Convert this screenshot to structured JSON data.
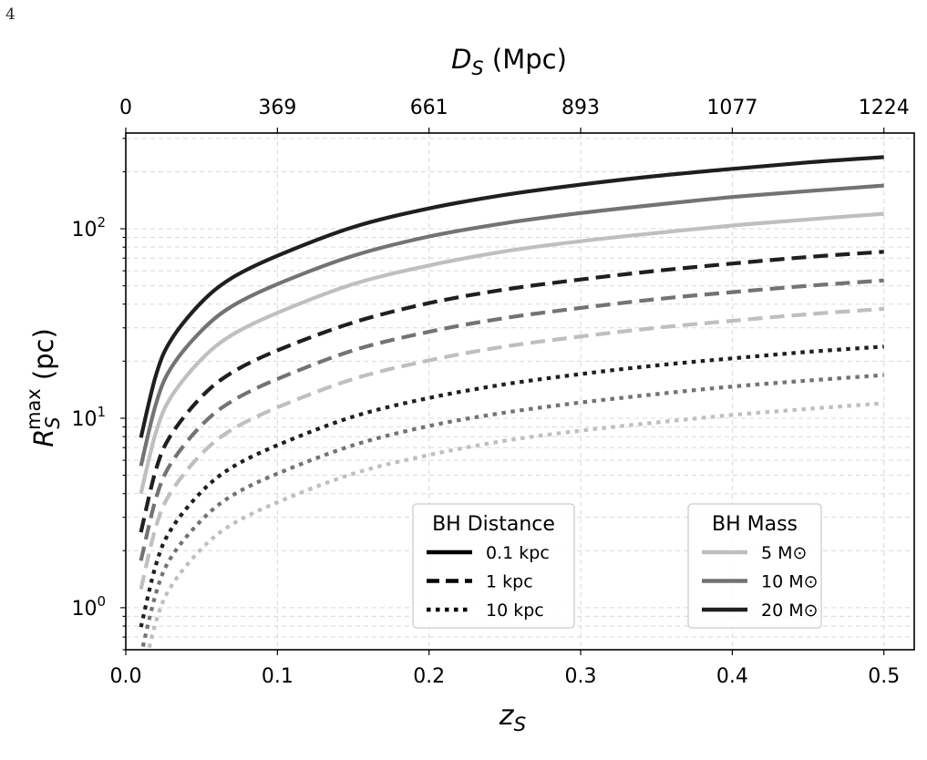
{
  "page": {
    "number": "4"
  },
  "chart_data": {
    "type": "line",
    "title": "",
    "xlabel": "z_S",
    "ylabel": "R_S^max (pc)",
    "top_xlabel": "D_S (Mpc)",
    "xlim": [
      0.0,
      0.52
    ],
    "ylim": [
      0.6,
      320
    ],
    "yscale": "log",
    "grid": true,
    "x_ticks": [
      "0.0",
      "0.1",
      "0.2",
      "0.3",
      "0.4",
      "0.5"
    ],
    "y_ticks": [
      {
        "base": "10",
        "exp": "0",
        "value": 1
      },
      {
        "base": "10",
        "exp": "1",
        "value": 10
      },
      {
        "base": "10",
        "exp": "2",
        "value": 100
      }
    ],
    "top_ticks": [
      {
        "z": 0.0,
        "label": "0"
      },
      {
        "z": 0.1,
        "label": "369"
      },
      {
        "z": 0.2,
        "label": "661"
      },
      {
        "z": 0.3,
        "label": "893"
      },
      {
        "z": 0.4,
        "label": "1077"
      },
      {
        "z": 0.5,
        "label": "1224"
      }
    ],
    "x": [
      0.01,
      0.02,
      0.03,
      0.05,
      0.07,
      0.1,
      0.15,
      0.2,
      0.25,
      0.3,
      0.35,
      0.4,
      0.45,
      0.5
    ],
    "series": [
      {
        "distance": "0.1 kpc",
        "mass": "20 M⊙",
        "values": [
          7.9,
          17,
          26,
          41,
          55,
          72,
          102,
          128,
          151,
          171,
          190,
          207,
          224,
          239
        ]
      },
      {
        "distance": "0.1 kpc",
        "mass": "10 M⊙",
        "values": [
          5.6,
          12,
          18.5,
          29,
          39,
          51,
          72,
          91,
          107,
          121,
          134,
          147,
          158,
          169
        ]
      },
      {
        "distance": "0.1 kpc",
        "mass": "5 M⊙",
        "values": [
          4.0,
          8.5,
          13,
          20.5,
          27.5,
          36,
          51,
          64,
          76,
          86,
          95,
          104,
          112,
          120
        ]
      },
      {
        "distance": "1 kpc",
        "mass": "20 M⊙",
        "values": [
          2.5,
          5.4,
          8.2,
          13,
          17.4,
          22.8,
          32,
          40.5,
          47.8,
          54,
          60,
          65.5,
          71,
          75.6
        ]
      },
      {
        "distance": "1 kpc",
        "mass": "10 M⊙",
        "values": [
          1.77,
          3.8,
          5.8,
          9.2,
          12.3,
          16.1,
          22.8,
          28.6,
          33.8,
          38.2,
          42.5,
          46.3,
          50,
          53.4
        ]
      },
      {
        "distance": "1 kpc",
        "mass": "5 M⊙",
        "values": [
          1.25,
          2.7,
          4.1,
          6.5,
          8.7,
          11.4,
          16.1,
          20.2,
          23.9,
          27,
          30,
          32.7,
          35.4,
          37.8
        ]
      },
      {
        "distance": "10 kpc",
        "mass": "20 M⊙",
        "values": [
          0.79,
          1.7,
          2.6,
          4.1,
          5.5,
          7.2,
          10.2,
          12.8,
          15.1,
          17.1,
          19,
          20.7,
          22.4,
          23.9
        ]
      },
      {
        "distance": "10 kpc",
        "mass": "10 M⊙",
        "values": [
          0.56,
          1.2,
          1.85,
          2.9,
          3.9,
          5.1,
          7.2,
          9.1,
          10.7,
          12.1,
          13.4,
          14.7,
          15.8,
          16.9
        ]
      },
      {
        "distance": "10 kpc",
        "mass": "5 M⊙",
        "values": [
          0.4,
          0.85,
          1.3,
          2.05,
          2.75,
          3.6,
          5.1,
          6.4,
          7.6,
          8.6,
          9.5,
          10.4,
          11.2,
          12.0
        ]
      }
    ],
    "legend_distance": {
      "title": "BH Distance",
      "placement": "lower-center",
      "entries": [
        {
          "label": "0.1 kpc",
          "style": "solid"
        },
        {
          "label": "1 kpc",
          "style": "dashed"
        },
        {
          "label": "10 kpc",
          "style": "dotted"
        }
      ]
    },
    "legend_mass": {
      "title": "BH Mass",
      "placement": "lower-right",
      "entries": [
        {
          "label": "5 M⊙",
          "color": "#bfbfbf"
        },
        {
          "label": "10 M⊙",
          "color": "#737373"
        },
        {
          "label": "20 M⊙",
          "color": "#1f1f1f"
        }
      ]
    },
    "mass_colors": {
      "20 M⊙": "#1f1f1f",
      "10 M⊙": "#737373",
      "5 M⊙": "#bfbfbf"
    }
  }
}
